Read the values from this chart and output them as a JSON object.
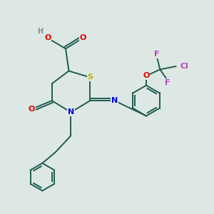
{
  "bg_color": "#dde8e4",
  "bond_color": "#1e5c50",
  "bond_width": 1.4,
  "atom_colors": {
    "S": "#b8b800",
    "N": "#0000dd",
    "O": "#dd0000",
    "Cl": "#bb44bb",
    "F": "#bb44bb",
    "C": "#1e5c50",
    "H": "#888888"
  },
  "font_size": 8
}
